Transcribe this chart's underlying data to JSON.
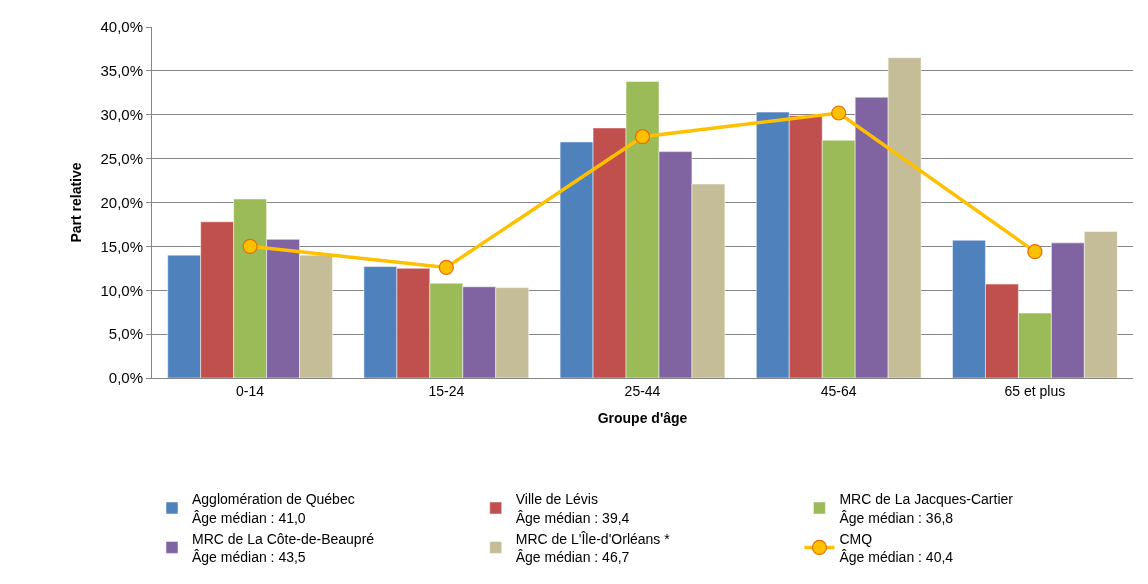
{
  "chart_data": {
    "type": "bar",
    "xlabel": "Groupe d'âge",
    "ylabel": "Part relative",
    "categories": [
      "0-14",
      "15-24",
      "25-44",
      "45-64",
      "65 et plus"
    ],
    "series": [
      {
        "name": "Agglomération de Québec\nÂge médian : 41,0",
        "color": "#4f81bd",
        "values": [
          14.0,
          12.7,
          26.9,
          30.3,
          15.7
        ]
      },
      {
        "name": "Ville de Lévis\nÂge médian : 39,4",
        "color": "#c0504d",
        "values": [
          17.8,
          12.5,
          28.5,
          29.9,
          10.7
        ]
      },
      {
        "name": "MRC de La Jacques-Cartier\nÂge médian : 36,8",
        "color": "#9bbb59",
        "values": [
          20.4,
          10.8,
          33.8,
          27.1,
          7.4
        ]
      },
      {
        "name": "MRC de La Côte-de-Beaupré\nÂge médian : 43,5",
        "color": "#8064a2",
        "values": [
          15.8,
          10.4,
          25.8,
          32.0,
          15.4
        ]
      },
      {
        "name": "MRC de L'Île-d'Orléans *\nÂge médian : 46,7",
        "color": "#c4bd97",
        "values": [
          14.0,
          10.3,
          22.1,
          36.5,
          16.7
        ]
      },
      {
        "name": "CMQ\nÂge médian : 40,4",
        "type": "line",
        "color": "#ffc000",
        "marker": "circle",
        "values": [
          15.0,
          12.6,
          27.5,
          30.2,
          14.4
        ]
      }
    ],
    "ylim": [
      0,
      40
    ],
    "yticks": [
      {
        "value": 0,
        "label": "0,0%"
      },
      {
        "value": 5,
        "label": "5,0%"
      },
      {
        "value": 10,
        "label": "10,0%"
      },
      {
        "value": 15,
        "label": "15,0%"
      },
      {
        "value": 20,
        "label": "20,0%"
      },
      {
        "value": 25,
        "label": "25,0%"
      },
      {
        "value": 30,
        "label": "30,0%"
      },
      {
        "value": 35,
        "label": "35,0%"
      },
      {
        "value": 40,
        "label": "40,0%"
      }
    ],
    "grid": "y",
    "legend": "bottom"
  }
}
